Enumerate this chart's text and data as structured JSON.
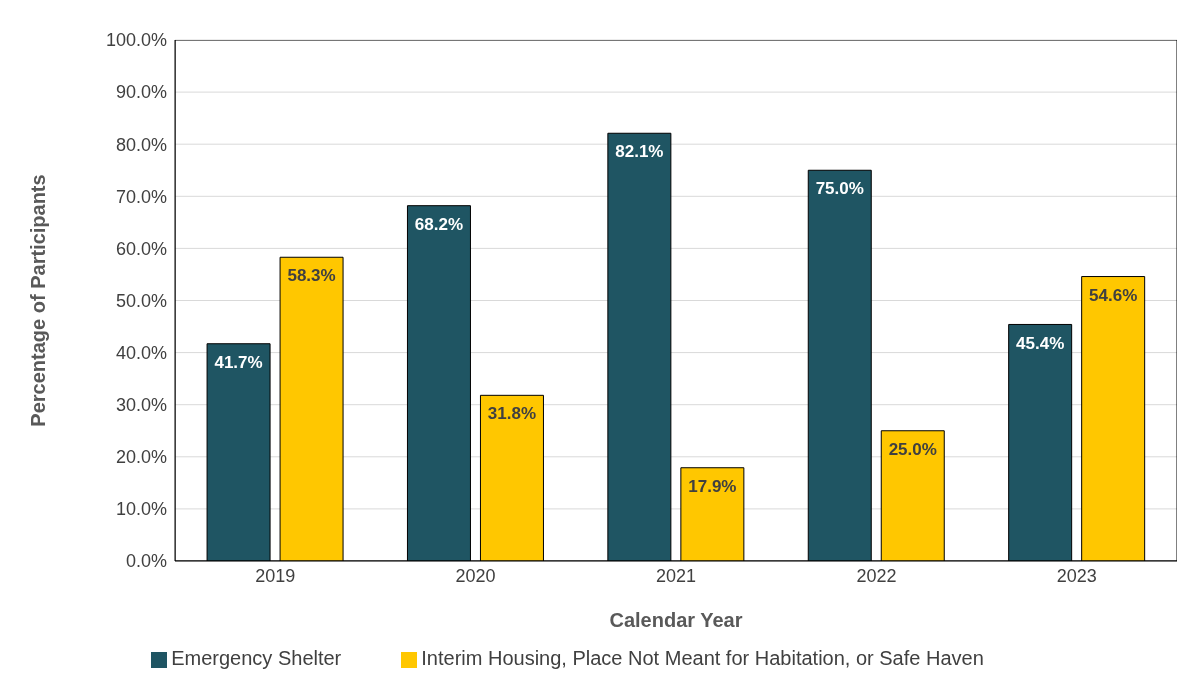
{
  "chart_data": {
    "type": "bar",
    "xlabel": "Calendar Year",
    "ylabel": "Percentage of Participants",
    "categories": [
      "2019",
      "2020",
      "2021",
      "2022",
      "2023"
    ],
    "series": [
      {
        "name": "Emergency Shelter",
        "color": "#1f5563",
        "values": [
          41.7,
          68.2,
          82.1,
          75.0,
          45.4
        ],
        "value_labels": [
          "41.7%",
          "68.2%",
          "82.1%",
          "75.0%",
          "45.4%"
        ]
      },
      {
        "name": "Interim Housing, Place Not Meant for Habitation, or Safe Haven",
        "color": "#ffc700",
        "values": [
          58.3,
          31.8,
          17.9,
          25.0,
          54.6
        ],
        "value_labels": [
          "58.3%",
          "31.8%",
          "17.9%",
          "25.0%",
          "54.6%"
        ]
      }
    ],
    "ylim": [
      0,
      100
    ],
    "yticks": [
      {
        "value": 0,
        "label": "0.0%"
      },
      {
        "value": 10,
        "label": "10.0%"
      },
      {
        "value": 20,
        "label": "20.0%"
      },
      {
        "value": 30,
        "label": "30.0%"
      },
      {
        "value": 40,
        "label": "40.0%"
      },
      {
        "value": 50,
        "label": "50.0%"
      },
      {
        "value": 60,
        "label": "60.0%"
      },
      {
        "value": 70,
        "label": "70.0%"
      },
      {
        "value": 80,
        "label": "80.0%"
      },
      {
        "value": 90,
        "label": "90.0%"
      },
      {
        "value": 100,
        "label": "100.0%"
      }
    ],
    "grid": "y",
    "legend": "bottom"
  }
}
